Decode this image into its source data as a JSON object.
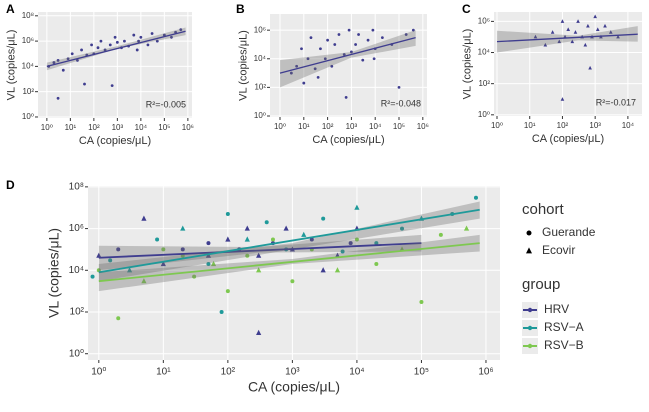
{
  "chart_data": [
    {
      "type": "scatter",
      "title": "A",
      "x_label": "CA (copies/μL)",
      "y_label": "VL (copies/μL)",
      "annotation": "R²=-0.005",
      "log_x": true,
      "log_y": true,
      "grid": true,
      "xlim": [
        0.42,
        1500000
      ],
      "ylim": [
        0.83,
        200000000
      ],
      "xticks": [
        {
          "value": 1,
          "label": "10⁰"
        },
        {
          "value": 10,
          "label": "10¹"
        },
        {
          "value": 100,
          "label": "10²"
        },
        {
          "value": 1000,
          "label": "10³"
        },
        {
          "value": 10000,
          "label": "10⁴"
        },
        {
          "value": 100000,
          "label": "10⁵"
        },
        {
          "value": 1000000,
          "label": "10⁶"
        }
      ],
      "yticks": [
        {
          "value": 1,
          "label": "10⁰"
        },
        {
          "value": 100,
          "label": "10²"
        },
        {
          "value": 10000,
          "label": "10⁴"
        },
        {
          "value": 1000000,
          "label": "10⁶"
        },
        {
          "value": 100000000,
          "label": "10⁸"
        }
      ],
      "series": [
        {
          "color": "#3f3d8f",
          "marker": "circle",
          "x": [
            1.2,
            2,
            3,
            5,
            8,
            12,
            20,
            30,
            50,
            80,
            100,
            150,
            200,
            300,
            500,
            800,
            1000,
            1500,
            2000,
            3000,
            5000,
            8000,
            10000,
            20000,
            30000,
            50000,
            100000,
            200000,
            300000,
            500000,
            3,
            40,
            600,
            7000
          ],
          "values": [
            10000,
            20000,
            30000,
            5000,
            40000,
            100000,
            30000,
            200000,
            80000,
            500000,
            100000,
            300000,
            1000000,
            200000,
            500000,
            2000000,
            800000,
            300000,
            1000000,
            400000,
            3000000,
            1000000,
            2000000,
            500000,
            4000000,
            1000000,
            3000000,
            2000000,
            5000000,
            8000000,
            30,
            400,
            300,
            200000
          ],
          "fit": {
            "x": [
              1,
              800000
            ],
            "y": [
              10000,
              6000000
            ]
          },
          "band": {
            "x": [
              1,
              1000,
              800000
            ],
            "lower": [
              5000,
              250000,
              3000000
            ],
            "upper": [
              20000,
              400000,
              12000000
            ]
          }
        }
      ]
    },
    {
      "type": "scatter",
      "title": "B",
      "x_label": "CA (copies/μL)",
      "y_label": "VL (copies/μL)",
      "annotation": "R²=-0.048",
      "log_x": true,
      "log_y": true,
      "grid": true,
      "xlim": [
        0.38,
        1500000
      ],
      "ylim": [
        0.85,
        13500000
      ],
      "xticks": [
        {
          "value": 1,
          "label": "10⁰"
        },
        {
          "value": 10,
          "label": "10¹"
        },
        {
          "value": 100,
          "label": "10²"
        },
        {
          "value": 1000,
          "label": "10³"
        },
        {
          "value": 10000,
          "label": "10⁴"
        },
        {
          "value": 100000,
          "label": "10⁵"
        },
        {
          "value": 1000000,
          "label": "10⁶"
        }
      ],
      "yticks": [
        {
          "value": 1,
          "label": "10⁰"
        },
        {
          "value": 100,
          "label": "10²"
        },
        {
          "value": 10000,
          "label": "10⁴"
        },
        {
          "value": 1000000,
          "label": "10⁶"
        }
      ],
      "series": [
        {
          "color": "#3f3d8f",
          "marker": "circle",
          "x": [
            3,
            5,
            8,
            10,
            15,
            20,
            30,
            50,
            80,
            100,
            150,
            200,
            300,
            500,
            800,
            1000,
            1500,
            2000,
            3000,
            5000,
            8000,
            10000,
            20000,
            50000,
            100000,
            200000,
            400000,
            40,
            600,
            9000
          ],
          "values": [
            1000,
            3000,
            50000,
            200,
            10000,
            300000,
            2000,
            50000,
            10000,
            200000,
            3000,
            100000,
            500000,
            20000,
            1000000,
            30000,
            100000,
            500000,
            8000,
            200000,
            1000000,
            50000,
            300000,
            100000,
            100,
            500000,
            1000000,
            500,
            20,
            10000
          ],
          "fit": {
            "x": [
              1,
              500000
            ],
            "y": [
              1000,
              300000
            ]
          },
          "band": {
            "x": [
              1,
              1000,
              500000
            ],
            "lower": [
              100,
              12000,
              80000
            ],
            "upper": [
              8000,
              30000,
              1000000
            ]
          }
        }
      ]
    },
    {
      "type": "scatter",
      "title": "C",
      "x_label": "CA (copies/μL)",
      "y_label": "VL (copies/μL)",
      "annotation": "R²=-0.017",
      "log_x": true,
      "log_y": true,
      "grid": true,
      "xlim": [
        0.81,
        27000
      ],
      "ylim": [
        0.84,
        4000000
      ],
      "xticks": [
        {
          "value": 1,
          "label": "10⁰"
        },
        {
          "value": 10,
          "label": "10¹"
        },
        {
          "value": 100,
          "label": "10²"
        },
        {
          "value": 1000,
          "label": "10³"
        },
        {
          "value": 10000,
          "label": "10⁴"
        }
      ],
      "yticks": [
        {
          "value": 1,
          "label": "10⁰"
        },
        {
          "value": 100,
          "label": "10²"
        },
        {
          "value": 10000,
          "label": "10⁴"
        },
        {
          "value": 1000000,
          "label": "10⁶"
        }
      ],
      "series": [
        {
          "color": "#3f3d8f",
          "marker": "triangle",
          "x": [
            15,
            30,
            50,
            80,
            100,
            120,
            150,
            200,
            250,
            300,
            400,
            500,
            600,
            800,
            1000,
            1200,
            1500,
            2000,
            3000,
            5000,
            100,
            700
          ],
          "values": [
            100000,
            30000,
            200000,
            50000,
            1000000,
            100000,
            300000,
            50000,
            200000,
            1000000,
            100000,
            30000,
            500000,
            100000,
            2000000,
            300000,
            100000,
            500000,
            200000,
            100000,
            10,
            1000
          ],
          "fit": {
            "x": [
              1,
              20000
            ],
            "y": [
              50000,
              150000
            ]
          },
          "band": {
            "x": [
              1,
              300,
              20000
            ],
            "lower": [
              10000,
              60000,
              50000
            ],
            "upper": [
              250000,
              120000,
              500000
            ]
          }
        }
      ]
    },
    {
      "type": "scatter",
      "title": "D",
      "x_label": "CA (copies/μL)",
      "y_label": "VL (copies/μL)",
      "log_x": true,
      "log_y": true,
      "grid": true,
      "xlim": [
        0.68,
        1650000
      ],
      "ylim": [
        0.5,
        110000000
      ],
      "xticks": [
        {
          "value": 1,
          "label": "10⁰"
        },
        {
          "value": 10,
          "label": "10¹"
        },
        {
          "value": 100,
          "label": "10²"
        },
        {
          "value": 1000,
          "label": "10³"
        },
        {
          "value": 10000,
          "label": "10⁴"
        },
        {
          "value": 100000,
          "label": "10⁵"
        },
        {
          "value": 1000000,
          "label": "10⁶"
        }
      ],
      "yticks": [
        {
          "value": 1,
          "label": "10⁰"
        },
        {
          "value": 100,
          "label": "10²"
        },
        {
          "value": 10000,
          "label": "10⁴"
        },
        {
          "value": 1000000,
          "label": "10⁶"
        },
        {
          "value": 100000000,
          "label": "10⁸"
        }
      ],
      "legend": {
        "cohort_title": "cohort",
        "cohort": [
          "Guerande",
          "Ecovir"
        ],
        "group_title": "group"
      },
      "series": [
        {
          "name": "HRV",
          "color": "#3f3d8f",
          "x": [
            1,
            2,
            5,
            10,
            20,
            50,
            100,
            150,
            200,
            300,
            500,
            800,
            1000,
            2000,
            3000,
            5000,
            8000,
            10000,
            300,
            50
          ],
          "values": [
            50000,
            100000,
            3000000,
            20000,
            100000,
            50000,
            300000,
            100000,
            1000000,
            50000,
            200000,
            1000000,
            100000,
            300000,
            10000,
            50000,
            200000,
            1000000,
            10,
            200000
          ],
          "cohort": [
            1,
            0,
            1,
            1,
            0,
            1,
            1,
            0,
            1,
            1,
            0,
            1,
            1,
            0,
            1,
            1,
            0,
            1,
            1,
            0
          ],
          "fit": {
            "x": [
              1,
              100000
            ],
            "y": [
              40000,
              200000
            ]
          },
          "band": {
            "x": [
              1,
              300,
              100000
            ],
            "lower": [
              10000,
              70000,
              80000
            ],
            "upper": [
              150000,
              130000,
              500000
            ]
          }
        },
        {
          "name": "RSV−A",
          "color": "#1f9a9a",
          "x": [
            0.8,
            1.5,
            3,
            8,
            20,
            50,
            100,
            200,
            400,
            800,
            1500,
            3000,
            6000,
            10000,
            20000,
            50000,
            100000,
            300000,
            700000,
            80
          ],
          "values": [
            5000,
            30000,
            10000,
            300000,
            1000000,
            20000,
            5000000,
            300000,
            2000000,
            100000,
            500000,
            3000000,
            80000,
            10000000,
            200000,
            1000000,
            3000000,
            5000000,
            30000000,
            100
          ],
          "cohort": [
            0,
            0,
            1,
            0,
            1,
            0,
            0,
            1,
            0,
            0,
            1,
            0,
            0,
            1,
            0,
            0,
            1,
            0,
            0,
            0
          ],
          "fit": {
            "x": [
              1,
              800000
            ],
            "y": [
              8000,
              8000000
            ]
          },
          "band": {
            "x": [
              1,
              1000,
              800000
            ],
            "lower": [
              3000,
              100000,
              3000000
            ],
            "upper": [
              20000,
              200000,
              20000000
            ]
          }
        },
        {
          "name": "RSV−B",
          "color": "#7ec850",
          "x": [
            1,
            2,
            5,
            10,
            30,
            60,
            100,
            200,
            300,
            500,
            1000,
            2000,
            5000,
            10000,
            20000,
            50000,
            100000,
            200000,
            500000,
            20
          ],
          "values": [
            10000,
            50,
            3000,
            100000,
            5000,
            20000,
            1000,
            50000,
            10000,
            300000,
            3000,
            100000,
            10000,
            300000,
            20000,
            100000,
            300,
            500000,
            1000000,
            50000
          ],
          "cohort": [
            0,
            0,
            1,
            0,
            0,
            1,
            0,
            0,
            1,
            0,
            0,
            0,
            1,
            0,
            0,
            1,
            0,
            0,
            1,
            0
          ],
          "fit": {
            "x": [
              1,
              800000
            ],
            "y": [
              3000,
              200000
            ]
          },
          "band": {
            "x": [
              1,
              1000,
              800000
            ],
            "lower": [
              1000,
              20000,
              80000
            ],
            "upper": [
              8000,
              35000,
              500000
            ]
          }
        }
      ]
    }
  ]
}
